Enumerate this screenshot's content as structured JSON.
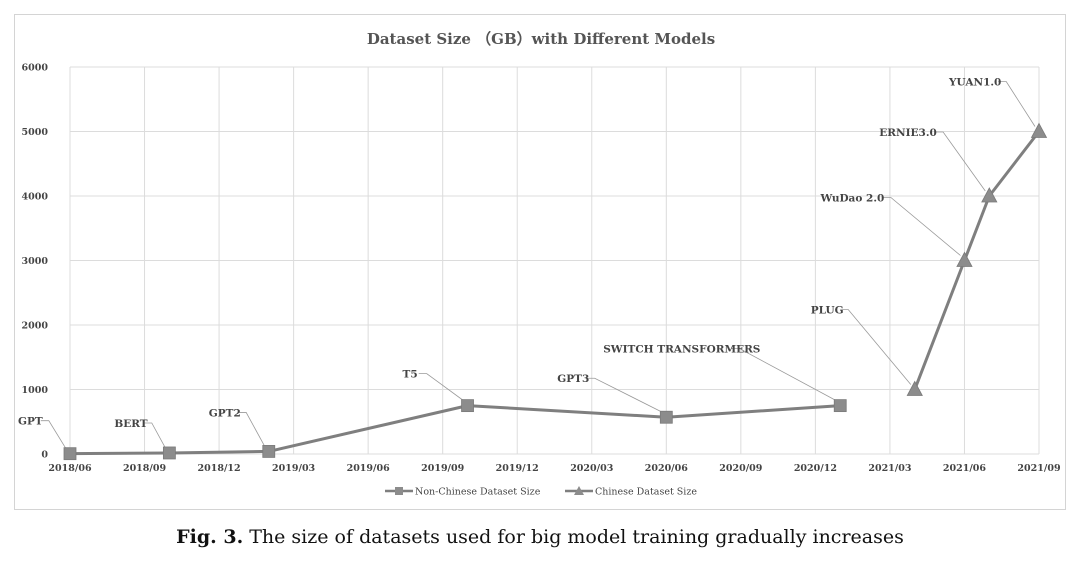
{
  "chart_data": {
    "type": "line",
    "title": "Dataset Size （GB）with Different Models",
    "xlabel": "",
    "ylabel": "",
    "ylim": [
      0,
      6000
    ],
    "yticks": [
      0,
      1000,
      2000,
      3000,
      4000,
      5000,
      6000
    ],
    "x_tick_labels": [
      "2018/06",
      "2018/09",
      "2018/12",
      "2019/03",
      "2019/06",
      "2019/09",
      "2019/12",
      "2020/03",
      "2020/06",
      "2020/09",
      "2020/12",
      "2021/03",
      "2021/06",
      "2021/09"
    ],
    "grid": true,
    "legend_position": "bottom",
    "series": [
      {
        "name": "Non-Chinese Dataset Size",
        "marker": "square",
        "points": [
          {
            "label": "GPT",
            "date": "2018/06",
            "value": 5
          },
          {
            "label": "BERT",
            "date": "2018/10",
            "value": 16
          },
          {
            "label": "GPT2",
            "date": "2019/02",
            "value": 40
          },
          {
            "label": "T5",
            "date": "2019/10",
            "value": 750
          },
          {
            "label": "GPT3",
            "date": "2020/06",
            "value": 570
          },
          {
            "label": "SWITCH TRANSFORMERS",
            "date": "2021/01",
            "value": 750
          }
        ]
      },
      {
        "name": "Chinese Dataset Size",
        "marker": "triangle",
        "points": [
          {
            "label": "PLUG",
            "date": "2021/04",
            "value": 1000
          },
          {
            "label": "WuDao 2.0",
            "date": "2021/06",
            "value": 3000
          },
          {
            "label": "ERNIE3.0",
            "date": "2021/07",
            "value": 4000
          },
          {
            "label": "YUAN1.0",
            "date": "2021/09",
            "value": 5000
          }
        ]
      }
    ]
  },
  "caption": {
    "prefix": "Fig. 3.",
    "text": " The size of datasets used for big model training gradually increases"
  },
  "colors": {
    "line": "#7f7f7f",
    "marker": "#8c8c8c",
    "grid": "#dcdcdc",
    "leader": "#9a9a9a"
  }
}
